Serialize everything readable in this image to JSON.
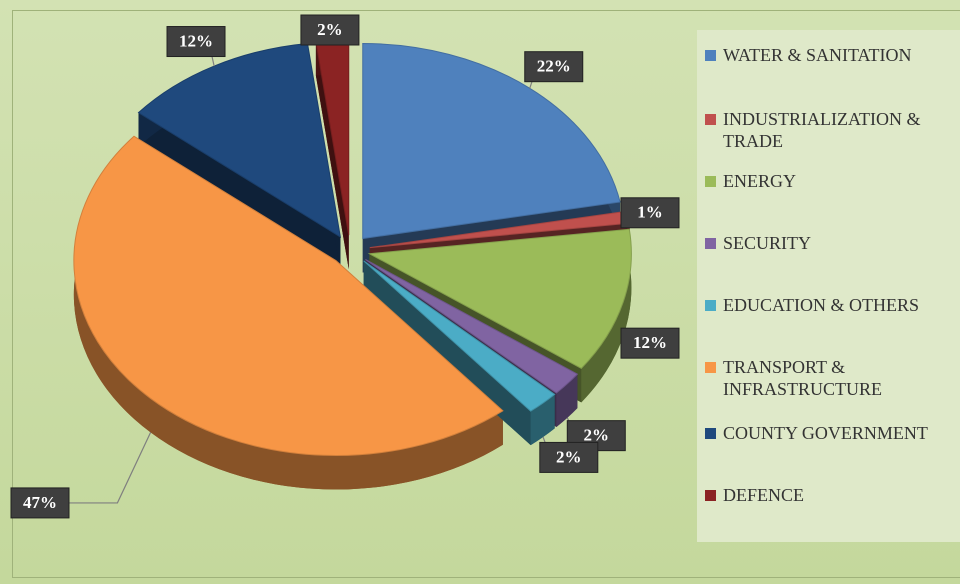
{
  "chart_data": {
    "type": "pie",
    "categories": [
      "WATER & SANITATION",
      "INDUSTRIALIZATION & TRADE",
      "ENERGY",
      "SECURITY",
      "EDUCATION & OTHERS",
      "TRANSPORT & INFRASTRUCTURE",
      "COUNTY GOVERNMENT",
      "DEFENCE"
    ],
    "values": [
      22,
      1,
      12,
      2,
      2,
      47,
      12,
      2
    ],
    "value_labels": [
      "22%",
      "1%",
      "12%",
      "2%",
      "2%",
      "47%",
      "12%",
      "2%"
    ],
    "colors": [
      "#4f81bd",
      "#c0504d",
      "#9bbb59",
      "#8064a2",
      "#4bacc6",
      "#f79646",
      "#1f497d",
      "#8b2323"
    ]
  }
}
